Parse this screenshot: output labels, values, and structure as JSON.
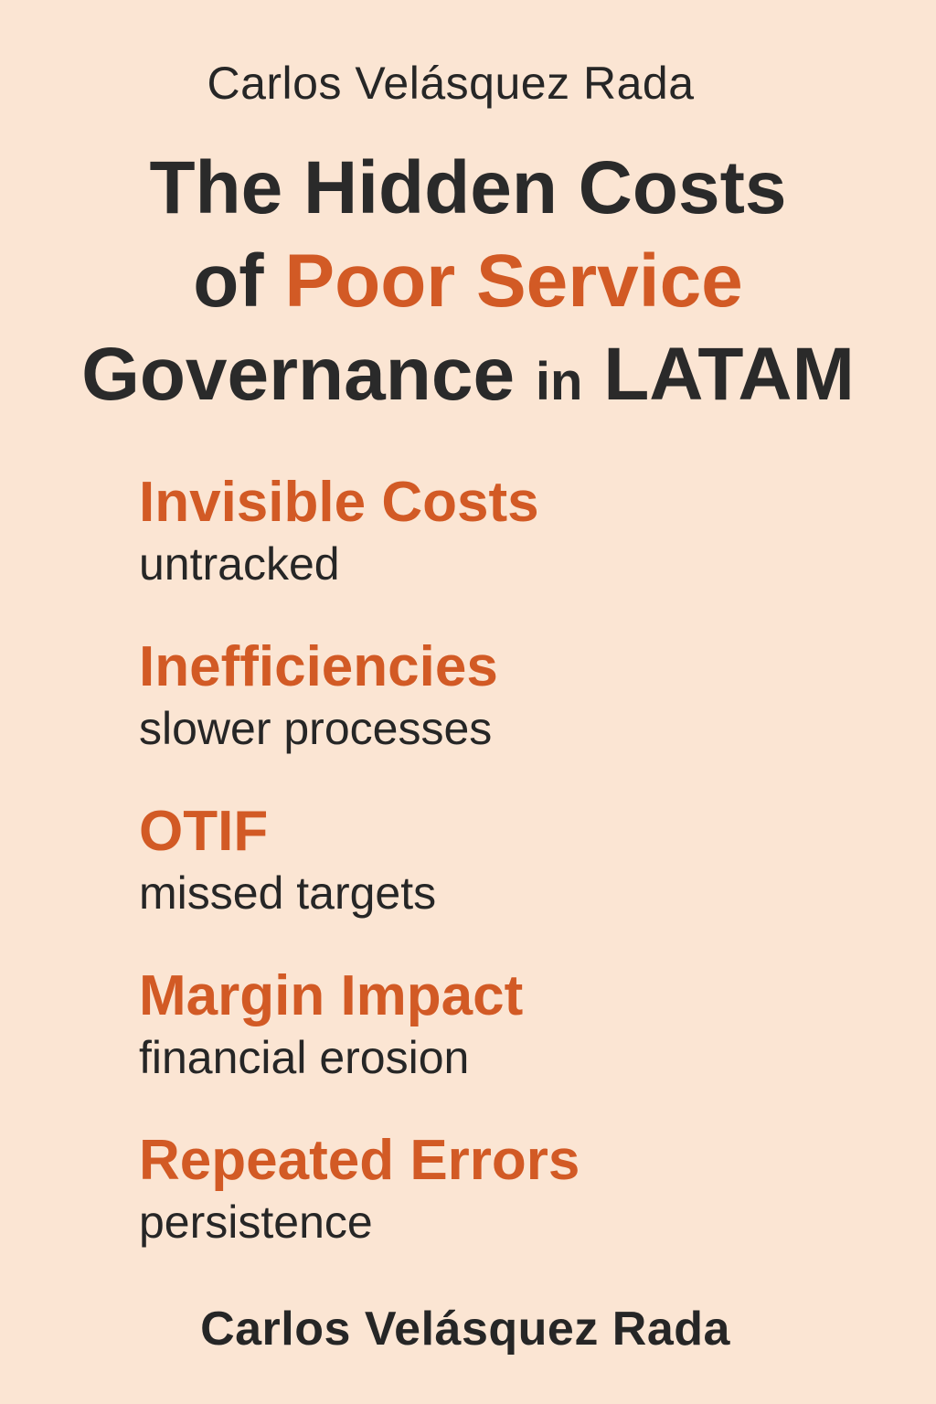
{
  "author_top": "Carlos Velásquez Rada",
  "title": {
    "line1": "The Hidden Costs",
    "line2_prefix": "of",
    "line2_accent": "Poor Service",
    "line3_main": "Governance",
    "line3_small": "in",
    "line3_end": "LATAM"
  },
  "items": [
    {
      "heading": "Invisible Costs",
      "sub": "untracked"
    },
    {
      "heading": "Inefficiencies",
      "sub": "slower processes"
    },
    {
      "heading": "OTIF",
      "sub": "missed targets"
    },
    {
      "heading": "Margin Impact",
      "sub": "financial erosion"
    },
    {
      "heading": "Repeated Errors",
      "sub": "persistence"
    }
  ],
  "author_bottom": "Carlos Velásquez Rada",
  "colors": {
    "background": "#fbe5d3",
    "accent": "#d25a25",
    "text": "#262626"
  }
}
